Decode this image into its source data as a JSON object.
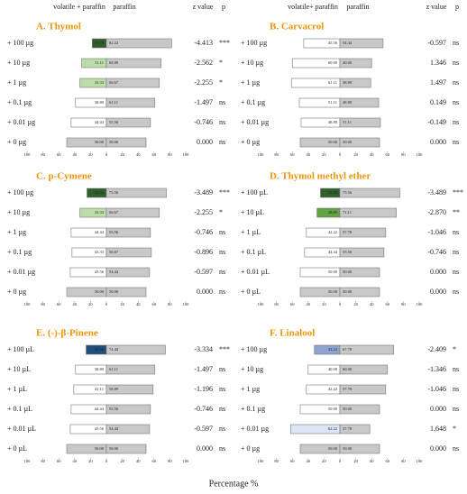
{
  "figure": {
    "xlabel": "Percentage %"
  },
  "chart_data": [
    {
      "type": "bar",
      "title": "A. Thymol",
      "headers": {
        "z": "z value",
        "p": "p"
      },
      "categories": [
        "+ 100 µg",
        "+ 10 µg",
        "+ 1 µg",
        "+ 0.1 µg",
        "+ 0.01 µg",
        "+ 0 µg"
      ],
      "series": [
        {
          "name": "volatile + paraffin",
          "colors": [
            "#2f5f2b",
            "#bcdcaa",
            "#bcdcaa",
            "#ffffff",
            "#ffffff",
            "#c8c8c8"
          ],
          "values": [
            17.78,
            31.11,
            33.33,
            38.89,
            44.44,
            50
          ],
          "value_labels": [
            "17.78",
            "31.11",
            "33.33",
            "38.89",
            "44.44",
            "50.00"
          ]
        },
        {
          "name": "paraffin",
          "color": "#c8c8c8",
          "values": [
            82.22,
            68.89,
            66.67,
            61.11,
            55.56,
            50
          ],
          "value_labels": [
            "82.22",
            "68.89",
            "66.67",
            "61.11",
            "55.56",
            "50.00"
          ]
        }
      ],
      "z_values": [
        "-4.413",
        "-2.562",
        "-2.255",
        "-1.497",
        "-0.746",
        "0.000"
      ],
      "p_values": [
        "***",
        "*",
        "*",
        "ns",
        "ns",
        "ns"
      ],
      "xlim": [
        -100,
        100
      ],
      "xticks": [
        {
          "value": -100,
          "label": "100"
        },
        {
          "value": -80,
          "label": "80"
        },
        {
          "value": -60,
          "label": "60"
        },
        {
          "value": -40,
          "label": "40"
        },
        {
          "value": -20,
          "label": "20"
        },
        0,
        20,
        40,
        60,
        80,
        100
      ]
    },
    {
      "type": "bar",
      "title": "B. Carvacrol",
      "headers": {
        "z": "z value",
        "p": "p"
      },
      "categories": [
        "+ 100 µg",
        "+ 10 µg",
        "+ 1 µg",
        "+ 0.1 µg",
        "+ 0.01 µg",
        "+ 0 µg"
      ],
      "series": [
        {
          "name": "volatile+ paraffin",
          "colors": [
            "#ffffff",
            "#ffffff",
            "#ffffff",
            "#ffffff",
            "#ffffff",
            "#c8c8c8"
          ],
          "values": [
            45.56,
            60,
            61.11,
            51.11,
            48.89,
            50
          ],
          "value_labels": [
            "45.56",
            "60.00",
            "61.11",
            "51.11",
            "48.89",
            "50.00"
          ]
        },
        {
          "name": "paraffin",
          "color": "#c8c8c8",
          "values": [
            54.44,
            40,
            38.89,
            48.89,
            51.11,
            50
          ],
          "value_labels": [
            "54.44",
            "40.00",
            "38.89",
            "48.89",
            "51.11",
            "50.00"
          ]
        }
      ],
      "z_values": [
        "-0.597",
        "1.346",
        "1.497",
        "0.149",
        "-0.149",
        "0.000"
      ],
      "p_values": [
        "ns",
        "ns",
        "ns",
        "ns",
        "ns",
        "ns"
      ],
      "xlim": [
        -100,
        100
      ],
      "xticks": [
        {
          "value": -100,
          "label": "100"
        },
        {
          "value": -80,
          "label": "80"
        },
        {
          "value": -60,
          "label": "60"
        },
        {
          "value": -40,
          "label": "40"
        },
        {
          "value": -20,
          "label": "20"
        },
        0,
        20,
        40,
        60,
        80,
        100
      ]
    },
    {
      "type": "bar",
      "title": "C. p-Cymene",
      "categories": [
        "+ 100 µg",
        "+ 10 µg",
        "+ 1 µg",
        "+ 0.1 µg",
        "+ 0.01 µg",
        "+ 0 µg"
      ],
      "series": [
        {
          "colors": [
            "#2f5f2b",
            "#bcdcaa",
            "#ffffff",
            "#ffffff",
            "#ffffff",
            "#c8c8c8"
          ],
          "values": [
            24.44,
            33.33,
            44.44,
            43.33,
            45.56,
            50
          ],
          "value_labels": [
            "24.44",
            "33.33",
            "44.44",
            "43.33",
            "45.56",
            "50.00"
          ]
        },
        {
          "color": "#c8c8c8",
          "values": [
            75.56,
            66.67,
            55.56,
            56.67,
            54.44,
            50
          ],
          "value_labels": [
            "75.56",
            "66.67",
            "55.56",
            "56.67",
            "54.44",
            "50.00"
          ]
        }
      ],
      "z_values": [
        "-3.489",
        "-2.255",
        "-0.746",
        "-0.896",
        "-0.597",
        "0.000"
      ],
      "p_values": [
        "***",
        "*",
        "ns",
        "ns",
        "ns",
        "ns"
      ],
      "xlim": [
        -100,
        100
      ],
      "xticks": [
        {
          "value": -100,
          "label": "100"
        },
        {
          "value": -80,
          "label": "80"
        },
        {
          "value": -60,
          "label": "60"
        },
        {
          "value": -40,
          "label": "40"
        },
        {
          "value": -20,
          "label": "20"
        },
        0,
        20,
        40,
        60,
        80,
        100
      ]
    },
    {
      "type": "bar",
      "title": "D. Thymol methyl ether",
      "categories": [
        "+ 100 µL",
        "+ 10 µL",
        "+ 1 µL",
        "+ 0.1 µL",
        "+ 0.01 µL",
        "+ 0 µL"
      ],
      "series": [
        {
          "colors": [
            "#2f5f2b",
            "#62a443",
            "#ffffff",
            "#ffffff",
            "#ffffff",
            "#c8c8c8"
          ],
          "values": [
            24.44,
            28.89,
            42.22,
            44.44,
            50,
            50
          ],
          "value_labels": [
            "24.44",
            "28.89",
            "42.22",
            "44.44",
            "50.00",
            "50.00"
          ]
        },
        {
          "color": "#c8c8c8",
          "values": [
            75.56,
            71.11,
            57.78,
            55.56,
            50,
            50
          ],
          "value_labels": [
            "75.56",
            "71.11",
            "57.78",
            "55.56",
            "50.00",
            "50.00"
          ]
        }
      ],
      "z_values": [
        "-3.489",
        "-2.870",
        "-1.046",
        "-0.746",
        "0.000",
        "0.000"
      ],
      "p_values": [
        "***",
        "**",
        "ns",
        "ns",
        "ns",
        "ns"
      ],
      "xlim": [
        -100,
        100
      ],
      "xticks": [
        {
          "value": -100,
          "label": "100"
        },
        {
          "value": -80,
          "label": "80"
        },
        {
          "value": -60,
          "label": "60"
        },
        {
          "value": -40,
          "label": "40"
        },
        {
          "value": -20,
          "label": "20"
        },
        0,
        20,
        40,
        60,
        80,
        100
      ]
    },
    {
      "type": "bar",
      "title": "E. (-)-β-Pinene",
      "categories": [
        "+ 100 µL",
        "+ 10 µL",
        "+ 1 µL",
        "+ 0.1 µL",
        "+ 0.01 µL",
        "+ 0 µL"
      ],
      "series": [
        {
          "colors": [
            "#1f4e79",
            "#ffffff",
            "#ffffff",
            "#ffffff",
            "#ffffff",
            "#c8c8c8"
          ],
          "values": [
            25.56,
            38.89,
            41.11,
            44.44,
            45.56,
            50
          ],
          "value_labels": [
            "25.56",
            "38.89",
            "41.11",
            "44.44",
            "45.56",
            "50.00"
          ]
        },
        {
          "color": "#c8c8c8",
          "values": [
            74.44,
            61.11,
            58.89,
            55.56,
            54.44,
            50
          ],
          "value_labels": [
            "74.44",
            "61.11",
            "58.89",
            "55.56",
            "54.44",
            "50.00"
          ]
        }
      ],
      "z_values": [
        "-3.334",
        "-1.497",
        "-1.196",
        "-0.746",
        "-0.597",
        "0.000"
      ],
      "p_values": [
        "***",
        "ns",
        "ns",
        "ns",
        "ns",
        "ns"
      ],
      "xlim": [
        -100,
        100
      ],
      "xticks": [
        {
          "value": -100,
          "label": "100"
        },
        {
          "value": -80,
          "label": "80"
        },
        {
          "value": -60,
          "label": "60"
        },
        {
          "value": -40,
          "label": "40"
        },
        {
          "value": -20,
          "label": "20"
        },
        0,
        20,
        40,
        60,
        80,
        100
      ]
    },
    {
      "type": "bar",
      "title": "F. Linalool",
      "categories": [
        "+ 100 µg",
        "+ 10 µg",
        "+ 1 µg",
        "+ 0.1 µg",
        "+ 0.01 µg",
        "+ 0 µg"
      ],
      "series": [
        {
          "colors": [
            "#8fa3d1",
            "#ffffff",
            "#ffffff",
            "#ffffff",
            "#dbe5f6",
            "#c8c8c8"
          ],
          "values": [
            32.22,
            40,
            42.22,
            50,
            62.22,
            50
          ],
          "value_labels": [
            "32.22",
            "40.00",
            "42.22",
            "50.00",
            "62.22",
            "50.00"
          ]
        },
        {
          "color": "#c8c8c8",
          "values": [
            67.78,
            60,
            57.78,
            50,
            37.78,
            50
          ],
          "value_labels": [
            "67.78",
            "60.00",
            "57.78",
            "50.00",
            "37.78",
            "50.00"
          ]
        }
      ],
      "z_values": [
        "-2.409",
        "-1.346",
        "-1.046",
        "0.000",
        "1.648",
        "0.000"
      ],
      "p_values": [
        "*",
        "ns",
        "ns",
        "ns",
        "*",
        "ns"
      ],
      "xlim": [
        -100,
        100
      ],
      "xticks": [
        {
          "value": -100,
          "label": "100"
        },
        {
          "value": -80,
          "label": "80"
        },
        {
          "value": -60,
          "label": "60"
        },
        {
          "value": -40,
          "label": "40"
        },
        {
          "value": -20,
          "label": "20"
        },
        0,
        20,
        40,
        60,
        80,
        100
      ]
    }
  ]
}
